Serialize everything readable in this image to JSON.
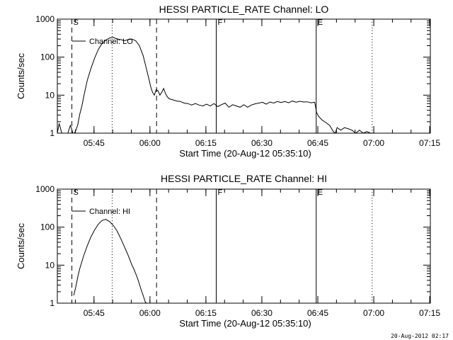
{
  "footer_timestamp": "20-Aug-2012 02:17",
  "chart_data": [
    {
      "type": "line",
      "title": "HESSI PARTICLE_RATE Channel: LO",
      "xlabel": "Start Time (20-Aug-12 05:35:10)",
      "ylabel": "Counts/sec",
      "x_unit": "minutes since 05:35:10",
      "xlim": [
        0,
        100
      ],
      "ylim": [
        1,
        1000
      ],
      "yscale": "log",
      "xticks": [
        {
          "t": 9.83,
          "label": "05:45"
        },
        {
          "t": 24.83,
          "label": "06:00"
        },
        {
          "t": 39.83,
          "label": "06:15"
        },
        {
          "t": 54.83,
          "label": "06:30"
        },
        {
          "t": 69.83,
          "label": "06:45"
        },
        {
          "t": 84.83,
          "label": "07:00"
        },
        {
          "t": 99.83,
          "label": "07:15"
        }
      ],
      "yticks": [
        {
          "v": 1,
          "label": "1"
        },
        {
          "v": 10,
          "label": "10"
        },
        {
          "v": 100,
          "label": "100"
        },
        {
          "v": 1000,
          "label": "1000"
        }
      ],
      "legend": {
        "label": "Channel: LO",
        "position": "top-left"
      },
      "markers": [
        {
          "t": 3.9,
          "style": "dashed",
          "label": "S"
        },
        {
          "t": 14.7,
          "style": "dotted",
          "label": ""
        },
        {
          "t": 26.6,
          "style": "dashed",
          "label": ""
        },
        {
          "t": 42.6,
          "style": "solid",
          "label": "F"
        },
        {
          "t": 69.4,
          "style": "solid",
          "label": "E"
        },
        {
          "t": 84.4,
          "style": "dotted",
          "label": ""
        }
      ],
      "series": [
        {
          "name": "Channel: LO",
          "x": [
            0,
            0.5,
            1.2,
            2,
            2.8,
            3.5,
            4.2,
            4.6,
            5,
            5.5,
            6,
            6.6,
            7.3,
            8,
            9,
            10,
            11,
            12,
            13,
            14,
            15,
            16,
            17,
            18,
            19,
            20,
            21,
            22,
            23,
            24,
            24.5,
            25,
            25.5,
            26,
            26.5,
            27,
            27.5,
            28,
            28.5,
            29,
            29.5,
            30,
            31,
            32,
            33,
            34,
            35,
            36,
            37,
            38,
            39,
            40,
            41,
            42,
            43,
            44,
            45,
            46,
            47,
            48,
            49,
            50,
            51,
            52,
            53,
            54,
            55,
            56,
            57,
            58,
            59,
            60,
            61,
            62,
            63,
            64,
            65,
            66,
            67,
            68,
            69,
            69.5,
            70,
            71,
            72,
            73,
            74,
            74.5,
            75,
            76,
            77,
            78,
            79,
            80,
            81,
            82,
            83,
            84
          ],
          "values": [
            1,
            1.8,
            1,
            1,
            1,
            1.6,
            1,
            1,
            1.2,
            1.7,
            3.1,
            5.3,
            11.7,
            24,
            50,
            95,
            160,
            230,
            280,
            320,
            330,
            300,
            290,
            270,
            290,
            300,
            270,
            200,
            110,
            44,
            28,
            17,
            12,
            10,
            14,
            13,
            10,
            12,
            15,
            11,
            9,
            8,
            7.5,
            7,
            6.8,
            6.2,
            6,
            5.5,
            6,
            5.5,
            5.2,
            5.8,
            5.2,
            6,
            5,
            5.6,
            6.2,
            4.8,
            5.6,
            5.2,
            4.8,
            5.6,
            4.8,
            5.5,
            5.9,
            6.2,
            6.5,
            5.8,
            6.6,
            6.2,
            6.8,
            6.4,
            6.8,
            6.3,
            7,
            6.5,
            6.9,
            6.6,
            6.7,
            6.3,
            6.5,
            3.5,
            2.8,
            2.2,
            1.9,
            1.6,
            1.1,
            1,
            1.4,
            1.2,
            1.4,
            1.3,
            1.2,
            1,
            1.2,
            1,
            1.1,
            1
          ]
        }
      ]
    },
    {
      "type": "line",
      "title": "HESSI PARTICLE_RATE Channel: HI",
      "xlabel": "Start Time (20-Aug-12 05:35:10)",
      "ylabel": "Counts/sec",
      "x_unit": "minutes since 05:35:10",
      "xlim": [
        0,
        100
      ],
      "ylim": [
        1,
        1000
      ],
      "yscale": "log",
      "xticks": [
        {
          "t": 9.83,
          "label": "05:45"
        },
        {
          "t": 24.83,
          "label": "06:00"
        },
        {
          "t": 39.83,
          "label": "06:15"
        },
        {
          "t": 54.83,
          "label": "06:30"
        },
        {
          "t": 69.83,
          "label": "06:45"
        },
        {
          "t": 84.83,
          "label": "07:00"
        },
        {
          "t": 99.83,
          "label": "07:15"
        }
      ],
      "yticks": [
        {
          "v": 1,
          "label": "1"
        },
        {
          "v": 10,
          "label": "10"
        },
        {
          "v": 100,
          "label": "100"
        },
        {
          "v": 1000,
          "label": "1000"
        }
      ],
      "legend": {
        "label": "Channel: HI",
        "position": "top-left"
      },
      "markers": [
        {
          "t": 3.9,
          "style": "dashed",
          "label": "S"
        },
        {
          "t": 14.7,
          "style": "dotted",
          "label": ""
        },
        {
          "t": 26.6,
          "style": "dashed",
          "label": ""
        },
        {
          "t": 42.6,
          "style": "solid",
          "label": "F"
        },
        {
          "t": 69.4,
          "style": "solid",
          "label": "E"
        },
        {
          "t": 84.4,
          "style": "dotted",
          "label": ""
        }
      ],
      "series": [
        {
          "name": "Channel: HI",
          "x": [
            4.4,
            5,
            5.5,
            6,
            7,
            8,
            9,
            10,
            11,
            12,
            13,
            14,
            15,
            16,
            17,
            18,
            19,
            20,
            20.5,
            21,
            21.5,
            22,
            22.5,
            23,
            23.3,
            23.6,
            24
          ],
          "values": [
            1.6,
            2.8,
            5,
            8,
            17,
            32,
            55,
            85,
            120,
            150,
            160,
            140,
            110,
            80,
            50,
            30,
            18,
            10,
            8,
            6,
            4.5,
            3.2,
            2.2,
            1.6,
            1.3,
            1.05,
            1
          ]
        }
      ]
    }
  ]
}
